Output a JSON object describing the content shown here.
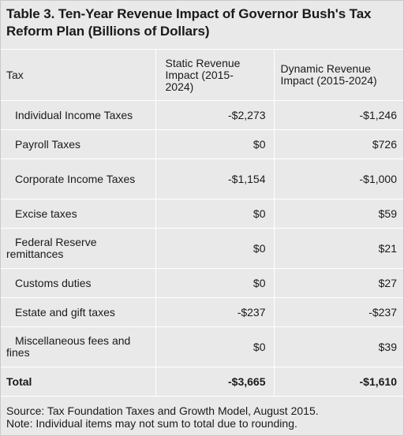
{
  "title": "Table 3. Ten-Year Revenue Impact of Governor Bush's Tax Reform Plan (Billions of Dollars)",
  "columns": {
    "tax": "Tax",
    "static": "Static Revenue Impact (2015-2024)",
    "dynamic": "Dynamic Revenue Impact (2015-2024)"
  },
  "rows": [
    {
      "name": "Individual Income Taxes",
      "static": "-$2,273",
      "dynamic": "-$1,246"
    },
    {
      "name": "Payroll Taxes",
      "static": "$0",
      "dynamic": "$726"
    },
    {
      "name": "Corporate Income Taxes",
      "static": "-$1,154",
      "dynamic": "-$1,000"
    },
    {
      "name": "Excise taxes",
      "static": "$0",
      "dynamic": "$59"
    },
    {
      "name": "Federal Reserve remittances",
      "static": "$0",
      "dynamic": "$21"
    },
    {
      "name": "Customs duties",
      "static": "$0",
      "dynamic": "$27"
    },
    {
      "name": "Estate and gift taxes",
      "static": "-$237",
      "dynamic": "-$237"
    },
    {
      "name": "Miscellaneous fees and fines",
      "static": "$0",
      "dynamic": "$39"
    }
  ],
  "total": {
    "name": "Total",
    "static": "-$3,665",
    "dynamic": "-$1,610"
  },
  "source": "Source: Tax Foundation Taxes and Growth Model, August 2015.",
  "note": "Note: Individual items may not sum to total due to rounding."
}
